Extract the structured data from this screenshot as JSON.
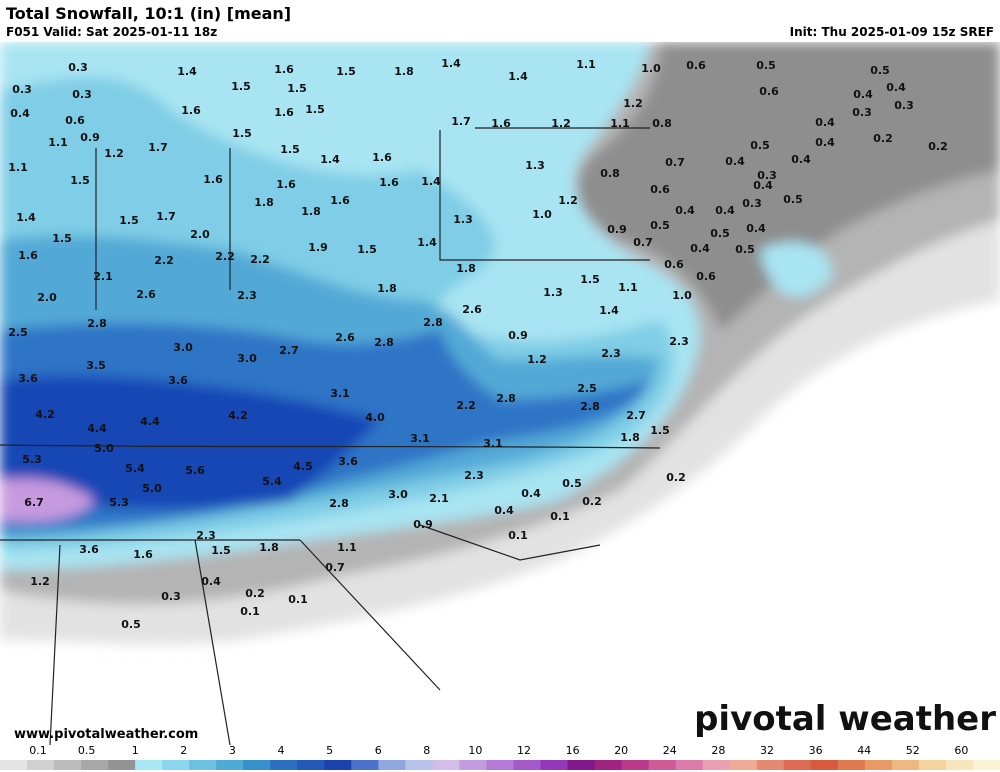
{
  "header": {
    "title": "Total Snowfall, 10:1 (in) [mean]",
    "valid": "F051 Valid: Sat 2025-01-11 18z",
    "init": "Init: Thu 2025-01-09 15z SREF"
  },
  "map_labels": [
    "0.3",
    "0.3",
    "0.3",
    "0.4",
    "0.6",
    "0.9",
    "1.1",
    "1.1",
    "1.2",
    "1.7",
    "1.5",
    "1.4",
    "1.5",
    "1.6",
    "1.5",
    "1.5",
    "1.8",
    "1.4",
    "1.4",
    "1.1",
    "1.0",
    "0.6",
    "0.5",
    "0.6",
    "0.5",
    "0.4",
    "0.4",
    "0.3",
    "1.6",
    "1.6",
    "1.5",
    "1.5",
    "1.5",
    "1.4",
    "1.6",
    "1.7",
    "1.6",
    "1.2",
    "1.1",
    "1.2",
    "0.8",
    "0.3",
    "0.4",
    "0.4",
    "0.2",
    "0.2",
    "0.5",
    "0.4",
    "0.7",
    "0.8",
    "0.6",
    "0.4",
    "0.4",
    "0.3",
    "0.5",
    "0.3",
    "0.4",
    "0.4",
    "0.5",
    "0.9",
    "0.7",
    "0.5",
    "0.4",
    "0.5",
    "0.4",
    "0.6",
    "0.6",
    "1.0",
    "1.1",
    "1.4",
    "1.5",
    "1.3",
    "0.9",
    "1.2",
    "1.3",
    "1.2",
    "1.0",
    "1.3",
    "1.4",
    "1.4",
    "1.8",
    "1.8",
    "1.6",
    "1.6",
    "1.5",
    "1.9",
    "1.8",
    "1.6",
    "1.8",
    "1.6",
    "1.7",
    "1.5",
    "1.4",
    "1.5",
    "1.6",
    "2.0",
    "2.2",
    "2.2",
    "2.2",
    "2.1",
    "2.0",
    "2.6",
    "2.3",
    "2.8",
    "2.5",
    "3.0",
    "2.7",
    "2.6",
    "2.8",
    "2.8",
    "2.6",
    "3.5",
    "3.0",
    "3.6",
    "3.6",
    "3.1",
    "4.0",
    "4.2",
    "4.2",
    "4.4",
    "4.4",
    "2.2",
    "2.8",
    "2.5",
    "2.8",
    "2.3",
    "2.3",
    "2.7",
    "1.8",
    "1.5",
    "3.1",
    "3.1",
    "5.0",
    "5.3",
    "5.4",
    "5.6",
    "4.5",
    "3.6",
    "5.4",
    "5.0",
    "5.3",
    "6.7",
    "2.3",
    "0.4",
    "0.5",
    "0.2",
    "0.2",
    "2.1",
    "3.0",
    "2.8",
    "0.4",
    "0.1",
    "0.9",
    "0.1",
    "2.3",
    "1.1",
    "3.6",
    "1.6",
    "1.5",
    "1.8",
    "0.7",
    "1.2",
    "0.4",
    "0.3",
    "0.2",
    "0.1",
    "0.1",
    "0.5"
  ],
  "legend": {
    "labels": [
      "0.1",
      "0.5",
      "1",
      "2",
      "3",
      "4",
      "5",
      "6",
      "8",
      "10",
      "12",
      "16",
      "20",
      "24",
      "28",
      "32",
      "36",
      "44",
      "52",
      "60"
    ]
  },
  "footer": {
    "url": "www.pivotalweather.com",
    "brand": "pivotal weather"
  }
}
